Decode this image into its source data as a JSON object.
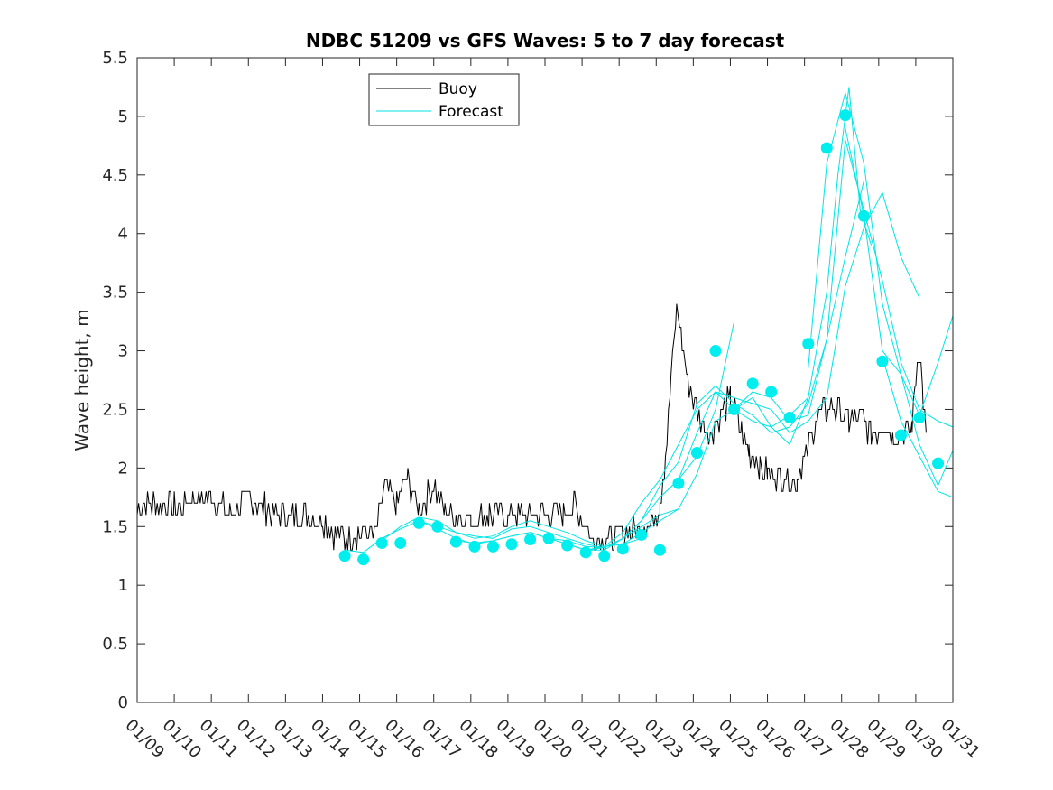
{
  "chart_data": {
    "type": "line",
    "title": "NDBC 51209 vs GFS Waves: 5 to 7 day forecast",
    "xlabel": "",
    "ylabel": "Wave height, m",
    "xlim": [
      0,
      22
    ],
    "ylim": [
      0,
      5.5
    ],
    "x_ticks": [
      {
        "x": 0,
        "label": "01/09"
      },
      {
        "x": 1,
        "label": "01/10"
      },
      {
        "x": 2,
        "label": "01/11"
      },
      {
        "x": 3,
        "label": "01/12"
      },
      {
        "x": 4,
        "label": "01/13"
      },
      {
        "x": 5,
        "label": "01/14"
      },
      {
        "x": 6,
        "label": "01/15"
      },
      {
        "x": 7,
        "label": "01/16"
      },
      {
        "x": 8,
        "label": "01/17"
      },
      {
        "x": 9,
        "label": "01/18"
      },
      {
        "x": 10,
        "label": "01/19"
      },
      {
        "x": 11,
        "label": "01/20"
      },
      {
        "x": 12,
        "label": "01/21"
      },
      {
        "x": 13,
        "label": "01/22"
      },
      {
        "x": 14,
        "label": "01/23"
      },
      {
        "x": 15,
        "label": "01/24"
      },
      {
        "x": 16,
        "label": "01/25"
      },
      {
        "x": 17,
        "label": "01/26"
      },
      {
        "x": 18,
        "label": "01/27"
      },
      {
        "x": 19,
        "label": "01/28"
      },
      {
        "x": 20,
        "label": "01/29"
      },
      {
        "x": 21,
        "label": "01/30"
      },
      {
        "x": 22,
        "label": "01/31"
      }
    ],
    "y_ticks": [
      {
        "y": 0,
        "label": "0"
      },
      {
        "y": 0.5,
        "label": "0.5"
      },
      {
        "y": 1,
        "label": "1"
      },
      {
        "y": 1.5,
        "label": "1.5"
      },
      {
        "y": 2,
        "label": "2"
      },
      {
        "y": 2.5,
        "label": "2.5"
      },
      {
        "y": 3,
        "label": "3"
      },
      {
        "y": 3.5,
        "label": "3.5"
      },
      {
        "y": 4,
        "label": "4"
      },
      {
        "y": 4.5,
        "label": "4.5"
      },
      {
        "y": 5,
        "label": "5"
      },
      {
        "y": 5.5,
        "label": "5.5"
      }
    ],
    "legend": {
      "position": "top-left",
      "entries": [
        {
          "label": "Buoy",
          "color": "#000000"
        },
        {
          "label": "Forecast",
          "color": "#00e5e5"
        }
      ]
    },
    "colors": {
      "buoy": "#000000",
      "forecast": "#00e5e5",
      "marker": "#00eeee"
    },
    "series": [
      {
        "name": "Buoy",
        "x": [
          0,
          0.5,
          1,
          1.5,
          2,
          2.5,
          3,
          3.5,
          4,
          4.5,
          5,
          5.3,
          5.6,
          6,
          6.4,
          6.7,
          7,
          7.3,
          7.6,
          8,
          8.3,
          8.6,
          9,
          9.5,
          10,
          10.5,
          11,
          11.5,
          11.8,
          12,
          12.3,
          12.7,
          13,
          13.3,
          13.6,
          13.9,
          14.1,
          14.25,
          14.4,
          14.55,
          14.7,
          14.85,
          15,
          15.3,
          15.5,
          15.8,
          16,
          16.3,
          16.5,
          16.8,
          17,
          17.3,
          17.6,
          17.8,
          18,
          18.3,
          18.6,
          18.9,
          19.2,
          19.5,
          19.8,
          20.1,
          20.4,
          20.7,
          20.9,
          21.0,
          21.1,
          21.2,
          21.3
        ],
        "y": [
          1.65,
          1.7,
          1.65,
          1.75,
          1.75,
          1.6,
          1.75,
          1.65,
          1.6,
          1.6,
          1.55,
          1.45,
          1.4,
          1.45,
          1.45,
          1.85,
          1.7,
          1.9,
          1.65,
          1.85,
          1.65,
          1.6,
          1.55,
          1.6,
          1.6,
          1.6,
          1.6,
          1.6,
          1.7,
          1.55,
          1.4,
          1.4,
          1.45,
          1.45,
          1.5,
          1.55,
          1.7,
          2.1,
          2.75,
          3.35,
          3.1,
          2.75,
          2.6,
          2.35,
          2.3,
          2.5,
          2.6,
          2.3,
          2.15,
          2.0,
          1.95,
          1.95,
          1.9,
          1.9,
          2.1,
          2.4,
          2.5,
          2.5,
          2.4,
          2.45,
          2.3,
          2.35,
          2.3,
          2.3,
          2.35,
          2.8,
          3.0,
          2.6,
          2.2
        ]
      },
      {
        "name": "Forecast",
        "x": [
          5.6,
          6.1,
          6.6,
          7.1,
          7.6,
          8.1,
          8.6,
          9.1,
          9.6,
          10.1,
          10.6,
          11.1,
          11.6,
          12.1,
          12.6
        ],
        "y": [
          1.3,
          1.28,
          1.4,
          1.48,
          1.55,
          1.5,
          1.45,
          1.42,
          1.4,
          1.48,
          1.5,
          1.45,
          1.4,
          1.35,
          1.32
        ]
      },
      {
        "name": "Forecast",
        "x": [
          6.6,
          7.1,
          7.6,
          8.1,
          8.6,
          9.1,
          9.6,
          10.1,
          10.6,
          11.1,
          11.6,
          12.1,
          12.6,
          13.1,
          13.6
        ],
        "y": [
          1.38,
          1.5,
          1.58,
          1.55,
          1.45,
          1.4,
          1.42,
          1.5,
          1.55,
          1.5,
          1.45,
          1.38,
          1.33,
          1.35,
          1.4
        ]
      },
      {
        "name": "Forecast",
        "x": [
          7.6,
          8.1,
          8.6,
          9.1,
          9.6,
          10.1,
          10.6,
          11.1,
          11.6,
          12.1,
          12.6,
          13.1,
          13.6,
          14.1,
          14.6
        ],
        "y": [
          1.55,
          1.48,
          1.4,
          1.35,
          1.38,
          1.42,
          1.45,
          1.4,
          1.38,
          1.33,
          1.32,
          1.4,
          1.5,
          1.6,
          1.65
        ]
      },
      {
        "name": "Forecast",
        "x": [
          8.6,
          9.1,
          9.6,
          10.1,
          10.6,
          11.1,
          11.6,
          12.1,
          12.6,
          13.1,
          13.6,
          14.1,
          14.6,
          15.1,
          15.6,
          16.1
        ],
        "y": [
          1.38,
          1.36,
          1.38,
          1.42,
          1.45,
          1.4,
          1.35,
          1.3,
          1.32,
          1.4,
          1.55,
          1.75,
          1.9,
          2.1,
          2.5,
          3.25
        ]
      },
      {
        "name": "Forecast",
        "x": [
          10.6,
          11.1,
          11.6,
          12.1,
          12.6,
          13.1,
          13.6,
          14.1,
          14.6,
          15.1,
          15.6,
          16.1,
          16.6,
          17.1,
          17.6,
          18.1
        ],
        "y": [
          1.45,
          1.4,
          1.35,
          1.3,
          1.33,
          1.45,
          1.7,
          1.9,
          2.2,
          2.5,
          2.65,
          2.5,
          2.4,
          2.35,
          2.45,
          2.6
        ]
      },
      {
        "name": "Forecast",
        "x": [
          12.1,
          12.6,
          13.1,
          13.6,
          14.1,
          14.6,
          15.1,
          15.6,
          16.1,
          16.6,
          17.1,
          17.6,
          18.1,
          18.6,
          19.1,
          19.6
        ],
        "y": [
          1.3,
          1.3,
          1.4,
          1.55,
          1.85,
          2.05,
          2.55,
          2.7,
          2.55,
          2.45,
          2.3,
          2.35,
          2.55,
          3.1,
          3.8,
          4.45
        ]
      },
      {
        "name": "Forecast",
        "x": [
          13.1,
          13.6,
          14.1,
          14.6,
          15.1,
          15.6,
          16.1,
          16.6,
          17.1,
          17.6,
          18.1,
          18.6,
          18.9,
          19.2,
          19.5,
          19.8
        ],
        "y": [
          1.35,
          1.45,
          1.55,
          1.65,
          1.95,
          2.4,
          2.5,
          2.6,
          2.35,
          2.2,
          2.6,
          3.5,
          4.5,
          5.25,
          4.2,
          3.9
        ]
      },
      {
        "name": "Forecast",
        "x": [
          14.1,
          14.6,
          15.1,
          15.6,
          16.1,
          16.6,
          17.1,
          17.6,
          18.1,
          18.6,
          19.1,
          19.6,
          20.1,
          20.6,
          21.1
        ],
        "y": [
          1.75,
          1.9,
          2.3,
          2.65,
          2.6,
          2.55,
          2.5,
          2.3,
          2.4,
          2.6,
          3.55,
          4.05,
          4.35,
          3.8,
          3.45
        ]
      },
      {
        "name": "Forecast",
        "x": [
          16.1,
          16.6,
          17.1,
          17.6,
          18.1,
          18.6,
          19.1,
          19.6,
          20.1,
          20.6,
          21.1,
          21.6,
          22.0
        ],
        "y": [
          2.5,
          2.65,
          2.6,
          2.4,
          2.45,
          3.1,
          4.8,
          4.2,
          3.6,
          2.9,
          2.5,
          2.4,
          2.35
        ]
      },
      {
        "name": "Forecast",
        "x": [
          18.1,
          18.6,
          19.1,
          19.6,
          20.1,
          20.6,
          21.1,
          21.6,
          22.0
        ],
        "y": [
          2.85,
          4.6,
          5.2,
          4.6,
          3.4,
          2.8,
          2.2,
          1.85,
          2.15
        ]
      },
      {
        "name": "Forecast",
        "x": [
          19.1,
          19.6,
          20.1,
          20.6,
          21.1,
          21.6,
          22.0
        ],
        "y": [
          4.9,
          4.15,
          3.0,
          2.8,
          2.45,
          2.9,
          3.3
        ]
      },
      {
        "name": "Forecast",
        "x": [
          20.1,
          20.6,
          21.1,
          21.6,
          22.0
        ],
        "y": [
          2.95,
          2.4,
          2.1,
          1.8,
          1.75
        ]
      },
      {
        "name": "Forecast points",
        "x": [
          5.6,
          6.1,
          6.6,
          7.1,
          7.6,
          8.1,
          8.6,
          9.1,
          9.6,
          10.1,
          10.6,
          11.1,
          11.6,
          12.1,
          12.6,
          13.1,
          13.6,
          14.1,
          14.6,
          15.1,
          15.6,
          16.1,
          16.6,
          17.1,
          17.6,
          18.1,
          18.6,
          19.1,
          19.6,
          20.1,
          20.6,
          21.1,
          21.6
        ],
        "y": [
          1.25,
          1.22,
          1.36,
          1.36,
          1.53,
          1.5,
          1.37,
          1.33,
          1.33,
          1.35,
          1.39,
          1.4,
          1.34,
          1.28,
          1.25,
          1.31,
          1.43,
          1.3,
          1.87,
          2.13,
          3.0,
          2.5,
          2.72,
          2.65,
          2.43,
          3.06,
          4.73,
          5.01,
          4.15,
          2.91,
          2.28,
          2.43,
          2.04
        ]
      }
    ]
  }
}
